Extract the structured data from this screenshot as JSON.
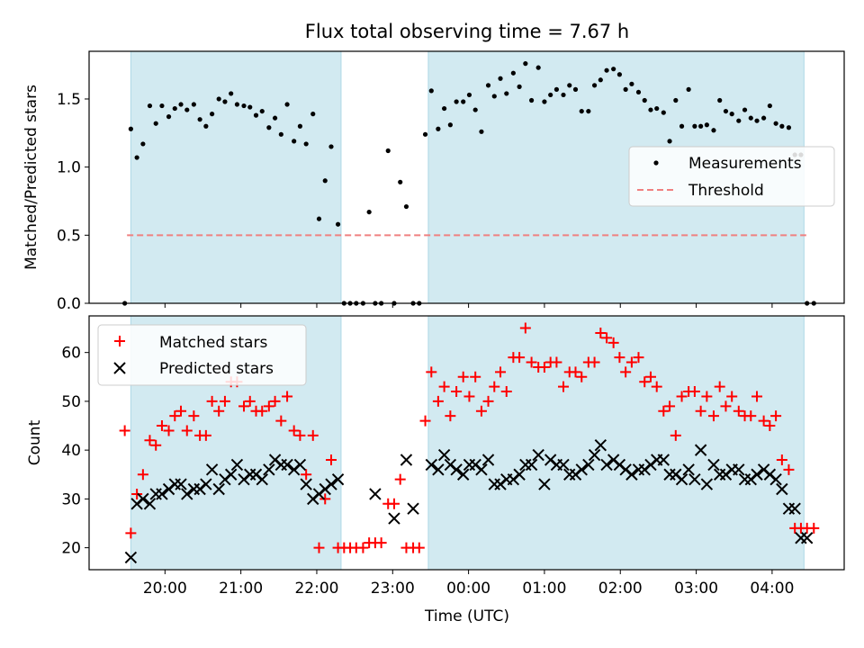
{
  "figure": {
    "title": "Flux total observing time = 7.67 h",
    "xlabel": "Time (UTC)"
  },
  "colors": {
    "shade": "#add8e6",
    "measurement": "#000000",
    "threshold": "#f08080",
    "matched": "#ff0000",
    "predicted": "#000000"
  },
  "chart_data": [
    {
      "type": "scatter",
      "panel": "top",
      "ylabel": "Matched/Predicted stars",
      "x_axis": "time (hours after 19:00 UTC, crossing midnight)",
      "xlim": [
        19.0,
        28.95
      ],
      "ylim": [
        0,
        1.85
      ],
      "xticks": [
        "20:00",
        "21:00",
        "22:00",
        "23:00",
        "00:00",
        "01:00",
        "02:00",
        "03:00",
        "04:00"
      ],
      "xtick_values": [
        20,
        21,
        22,
        23,
        24,
        25,
        26,
        27,
        28
      ],
      "yticks": [
        0.0,
        0.5,
        1.0,
        1.5
      ],
      "legend": {
        "placement": "right",
        "entries": [
          "Measurements",
          "Threshold"
        ]
      },
      "shaded_intervals": [
        [
          19.55,
          22.32
        ],
        [
          23.47,
          28.42
        ]
      ],
      "threshold": {
        "name": "Threshold",
        "y": 0.5,
        "x_range": [
          19.5,
          28.45
        ]
      },
      "series": [
        {
          "name": "Measurements",
          "marker": "dot",
          "x": [
            19.47,
            19.55,
            19.63,
            19.71,
            19.8,
            19.88,
            19.96,
            20.05,
            20.13,
            20.21,
            20.29,
            20.38,
            20.46,
            20.54,
            20.62,
            20.71,
            20.79,
            20.87,
            20.95,
            21.04,
            21.12,
            21.2,
            21.28,
            21.37,
            21.45,
            21.53,
            21.61,
            21.7,
            21.78,
            21.86,
            21.95,
            22.03,
            22.11,
            22.19,
            22.28,
            22.36,
            22.44,
            22.52,
            22.61,
            22.69,
            22.77,
            22.85,
            22.94,
            23.02,
            23.1,
            23.18,
            23.27,
            23.35,
            23.43,
            23.51,
            23.6,
            23.68,
            23.76,
            23.84,
            23.93,
            24.01,
            24.09,
            24.17,
            24.26,
            24.34,
            24.42,
            24.5,
            24.59,
            24.67,
            24.75,
            24.83,
            24.92,
            25.0,
            25.08,
            25.16,
            25.25,
            25.33,
            25.41,
            25.49,
            25.58,
            25.66,
            25.74,
            25.82,
            25.91,
            25.99,
            26.07,
            26.15,
            26.24,
            26.32,
            26.4,
            26.48,
            26.57,
            26.65,
            26.73,
            26.81,
            26.9,
            26.98,
            27.06,
            27.14,
            27.23,
            27.31,
            27.39,
            27.47,
            27.56,
            27.64,
            27.72,
            27.8,
            27.89,
            27.97,
            28.05,
            28.13,
            28.22,
            28.3,
            28.38,
            28.46,
            28.55
          ],
          "y": [
            0.0,
            1.28,
            1.07,
            1.17,
            1.45,
            1.32,
            1.45,
            1.37,
            1.43,
            1.46,
            1.42,
            1.46,
            1.35,
            1.3,
            1.39,
            1.5,
            1.48,
            1.54,
            1.46,
            1.45,
            1.44,
            1.38,
            1.41,
            1.29,
            1.36,
            1.24,
            1.46,
            1.19,
            1.3,
            1.17,
            1.39,
            0.62,
            0.9,
            1.15,
            0.58,
            0.0,
            0.0,
            0.0,
            0.0,
            0.67,
            0.0,
            0.0,
            1.12,
            0.0,
            0.89,
            0.71,
            0.0,
            0.0,
            1.24,
            1.56,
            1.28,
            1.43,
            1.31,
            1.48,
            1.48,
            1.53,
            1.42,
            1.26,
            1.6,
            1.52,
            1.65,
            1.54,
            1.69,
            1.59,
            1.76,
            1.49,
            1.73,
            1.48,
            1.53,
            1.57,
            1.53,
            1.6,
            1.57,
            1.41,
            1.41,
            1.6,
            1.64,
            1.71,
            1.72,
            1.68,
            1.57,
            1.61,
            1.55,
            1.49,
            1.42,
            1.43,
            1.4,
            1.19,
            1.49,
            1.3,
            1.57,
            1.3,
            1.3,
            1.31,
            1.27,
            1.49,
            1.41,
            1.39,
            1.34,
            1.42,
            1.36,
            1.34,
            1.36,
            1.45,
            1.32,
            1.3,
            1.29,
            1.09,
            1.09,
            0.0,
            0.0
          ]
        }
      ]
    },
    {
      "type": "scatter",
      "panel": "bottom",
      "ylabel": "Count",
      "x_axis": "time (hours after 19:00 UTC, crossing midnight)",
      "xlim": [
        19.0,
        28.95
      ],
      "ylim": [
        15.5,
        67.5
      ],
      "xticks": [
        "20:00",
        "21:00",
        "22:00",
        "23:00",
        "00:00",
        "01:00",
        "02:00",
        "03:00",
        "04:00"
      ],
      "xtick_values": [
        20,
        21,
        22,
        23,
        24,
        25,
        26,
        27,
        28
      ],
      "yticks": [
        20,
        30,
        40,
        50,
        60
      ],
      "legend": {
        "placement": "upper-left",
        "entries": [
          "Matched stars",
          "Predicted stars"
        ]
      },
      "shaded_intervals": [
        [
          19.55,
          22.32
        ],
        [
          23.47,
          28.42
        ]
      ],
      "series": [
        {
          "name": "Matched stars",
          "marker": "plus",
          "x": [
            19.47,
            19.55,
            19.63,
            19.71,
            19.8,
            19.88,
            19.96,
            20.05,
            20.13,
            20.21,
            20.29,
            20.38,
            20.46,
            20.54,
            20.62,
            20.71,
            20.79,
            20.87,
            20.95,
            21.04,
            21.12,
            21.2,
            21.28,
            21.37,
            21.45,
            21.53,
            21.61,
            21.7,
            21.78,
            21.86,
            21.95,
            22.03,
            22.11,
            22.19,
            22.28,
            22.36,
            22.44,
            22.52,
            22.61,
            22.69,
            22.77,
            22.85,
            22.94,
            23.02,
            23.1,
            23.18,
            23.27,
            23.35,
            23.43,
            23.51,
            23.6,
            23.68,
            23.76,
            23.84,
            23.93,
            24.01,
            24.09,
            24.17,
            24.26,
            24.34,
            24.42,
            24.5,
            24.59,
            24.67,
            24.75,
            24.83,
            24.92,
            25.0,
            25.08,
            25.16,
            25.25,
            25.33,
            25.41,
            25.49,
            25.58,
            25.66,
            25.74,
            25.82,
            25.91,
            25.99,
            26.07,
            26.15,
            26.24,
            26.32,
            26.4,
            26.48,
            26.57,
            26.65,
            26.73,
            26.81,
            26.9,
            26.98,
            27.06,
            27.14,
            27.23,
            27.31,
            27.39,
            27.47,
            27.56,
            27.64,
            27.72,
            27.8,
            27.89,
            27.97,
            28.05,
            28.13,
            28.22,
            28.3,
            28.38,
            28.46,
            28.55
          ],
          "y": [
            44,
            23,
            31,
            35,
            42,
            41,
            45,
            44,
            47,
            48,
            44,
            47,
            43,
            43,
            50,
            48,
            50,
            54,
            54,
            49,
            50,
            48,
            48,
            49,
            50,
            46,
            51,
            44,
            43,
            35,
            43,
            20,
            30,
            38,
            20,
            20,
            20,
            20,
            20,
            21,
            21,
            21,
            29,
            29,
            34,
            20,
            20,
            20,
            46,
            56,
            50,
            53,
            47,
            52,
            55,
            51,
            55,
            48,
            50,
            53,
            56,
            52,
            59,
            59,
            65,
            58,
            57,
            57,
            58,
            58,
            53,
            56,
            56,
            55,
            58,
            58,
            64,
            63,
            62,
            59,
            56,
            58,
            59,
            54,
            55,
            53,
            48,
            49,
            43,
            51,
            52,
            52,
            48,
            51,
            47,
            53,
            49,
            51,
            48,
            47,
            47,
            51,
            46,
            45,
            47,
            38,
            36,
            24,
            24,
            24,
            24
          ]
        },
        {
          "name": "Predicted stars",
          "marker": "x",
          "x": [
            19.55,
            19.63,
            19.71,
            19.8,
            19.88,
            19.96,
            20.05,
            20.13,
            20.21,
            20.29,
            20.38,
            20.46,
            20.54,
            20.62,
            20.71,
            20.79,
            20.87,
            20.95,
            21.04,
            21.12,
            21.2,
            21.28,
            21.37,
            21.45,
            21.53,
            21.61,
            21.7,
            21.78,
            21.86,
            21.95,
            22.03,
            22.11,
            22.19,
            22.28,
            22.77,
            23.02,
            23.18,
            23.27,
            23.51,
            23.6,
            23.68,
            23.76,
            23.84,
            23.93,
            24.01,
            24.09,
            24.17,
            24.26,
            24.34,
            24.42,
            24.5,
            24.59,
            24.67,
            24.75,
            24.83,
            24.92,
            25.0,
            25.08,
            25.16,
            25.25,
            25.33,
            25.41,
            25.49,
            25.58,
            25.66,
            25.74,
            25.82,
            25.91,
            25.99,
            26.07,
            26.15,
            26.24,
            26.32,
            26.4,
            26.48,
            26.57,
            26.65,
            26.73,
            26.81,
            26.9,
            26.98,
            27.06,
            27.14,
            27.23,
            27.31,
            27.39,
            27.47,
            27.56,
            27.64,
            27.72,
            27.8,
            27.89,
            27.97,
            28.05,
            28.13,
            28.22,
            28.3,
            28.38,
            28.46
          ],
          "y": [
            18,
            29,
            30,
            29,
            31,
            31,
            32,
            33,
            33,
            31,
            32,
            32,
            33,
            36,
            32,
            34,
            35,
            37,
            34,
            35,
            35,
            34,
            36,
            38,
            37,
            37,
            36,
            37,
            33,
            30,
            31,
            32,
            33,
            34,
            31,
            26,
            38,
            28,
            37,
            36,
            39,
            37,
            36,
            35,
            37,
            37,
            36,
            38,
            33,
            33,
            34,
            34,
            35,
            37,
            37,
            39,
            33,
            38,
            37,
            37,
            35,
            35,
            36,
            37,
            39,
            41,
            37,
            38,
            37,
            36,
            35,
            36,
            36,
            37,
            38,
            38,
            35,
            35,
            34,
            36,
            34,
            40,
            33,
            37,
            35,
            35,
            36,
            36,
            34,
            34,
            35,
            36,
            35,
            34,
            32,
            28,
            28,
            22,
            22
          ]
        }
      ]
    }
  ]
}
